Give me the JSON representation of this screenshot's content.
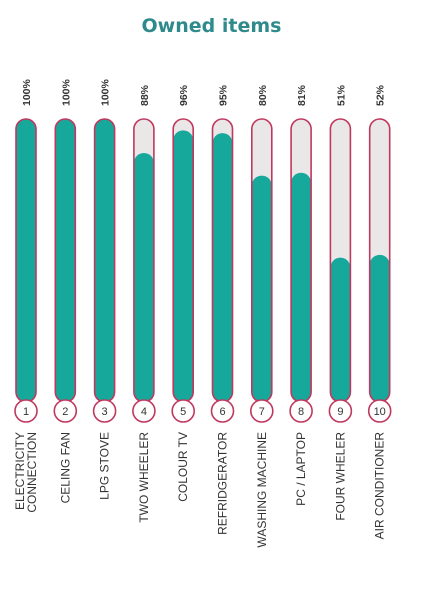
{
  "chart_data": {
    "type": "bar",
    "title": "Owned items",
    "orientation": "vertical-pill",
    "ylim": [
      0,
      100
    ],
    "unit": "%",
    "categories": [
      {
        "index": "1",
        "label_lines": [
          "ELECTRICITY",
          "CONNECTION"
        ],
        "value": 100,
        "value_label": "100%"
      },
      {
        "index": "2",
        "label_lines": [
          "CELING FAN"
        ],
        "value": 100,
        "value_label": "100%"
      },
      {
        "index": "3",
        "label_lines": [
          "LPG STOVE"
        ],
        "value": 100,
        "value_label": "100%"
      },
      {
        "index": "4",
        "label_lines": [
          "TWO WHEELER"
        ],
        "value": 88,
        "value_label": "88%"
      },
      {
        "index": "5",
        "label_lines": [
          "COLOUR TV"
        ],
        "value": 96,
        "value_label": "96%"
      },
      {
        "index": "6",
        "label_lines": [
          "REFRIDGERATOR"
        ],
        "value": 95,
        "value_label": "95%"
      },
      {
        "index": "7",
        "label_lines": [
          "WASHING MACHINE"
        ],
        "value": 80,
        "value_label": "80%"
      },
      {
        "index": "8",
        "label_lines": [
          "PC / LAPTOP"
        ],
        "value": 81,
        "value_label": "81%"
      },
      {
        "index": "9",
        "label_lines": [
          "FOUR WHELER"
        ],
        "value": 51,
        "value_label": "51%"
      },
      {
        "index": "10",
        "label_lines": [
          "AIR CONDITIONER"
        ],
        "value": 52,
        "value_label": "52%"
      }
    ],
    "colors": {
      "fill": "#17a89c",
      "track": "#e9e7e8",
      "outline": "#c0385e",
      "text": "#333333",
      "title": "#2f8a8c"
    }
  }
}
